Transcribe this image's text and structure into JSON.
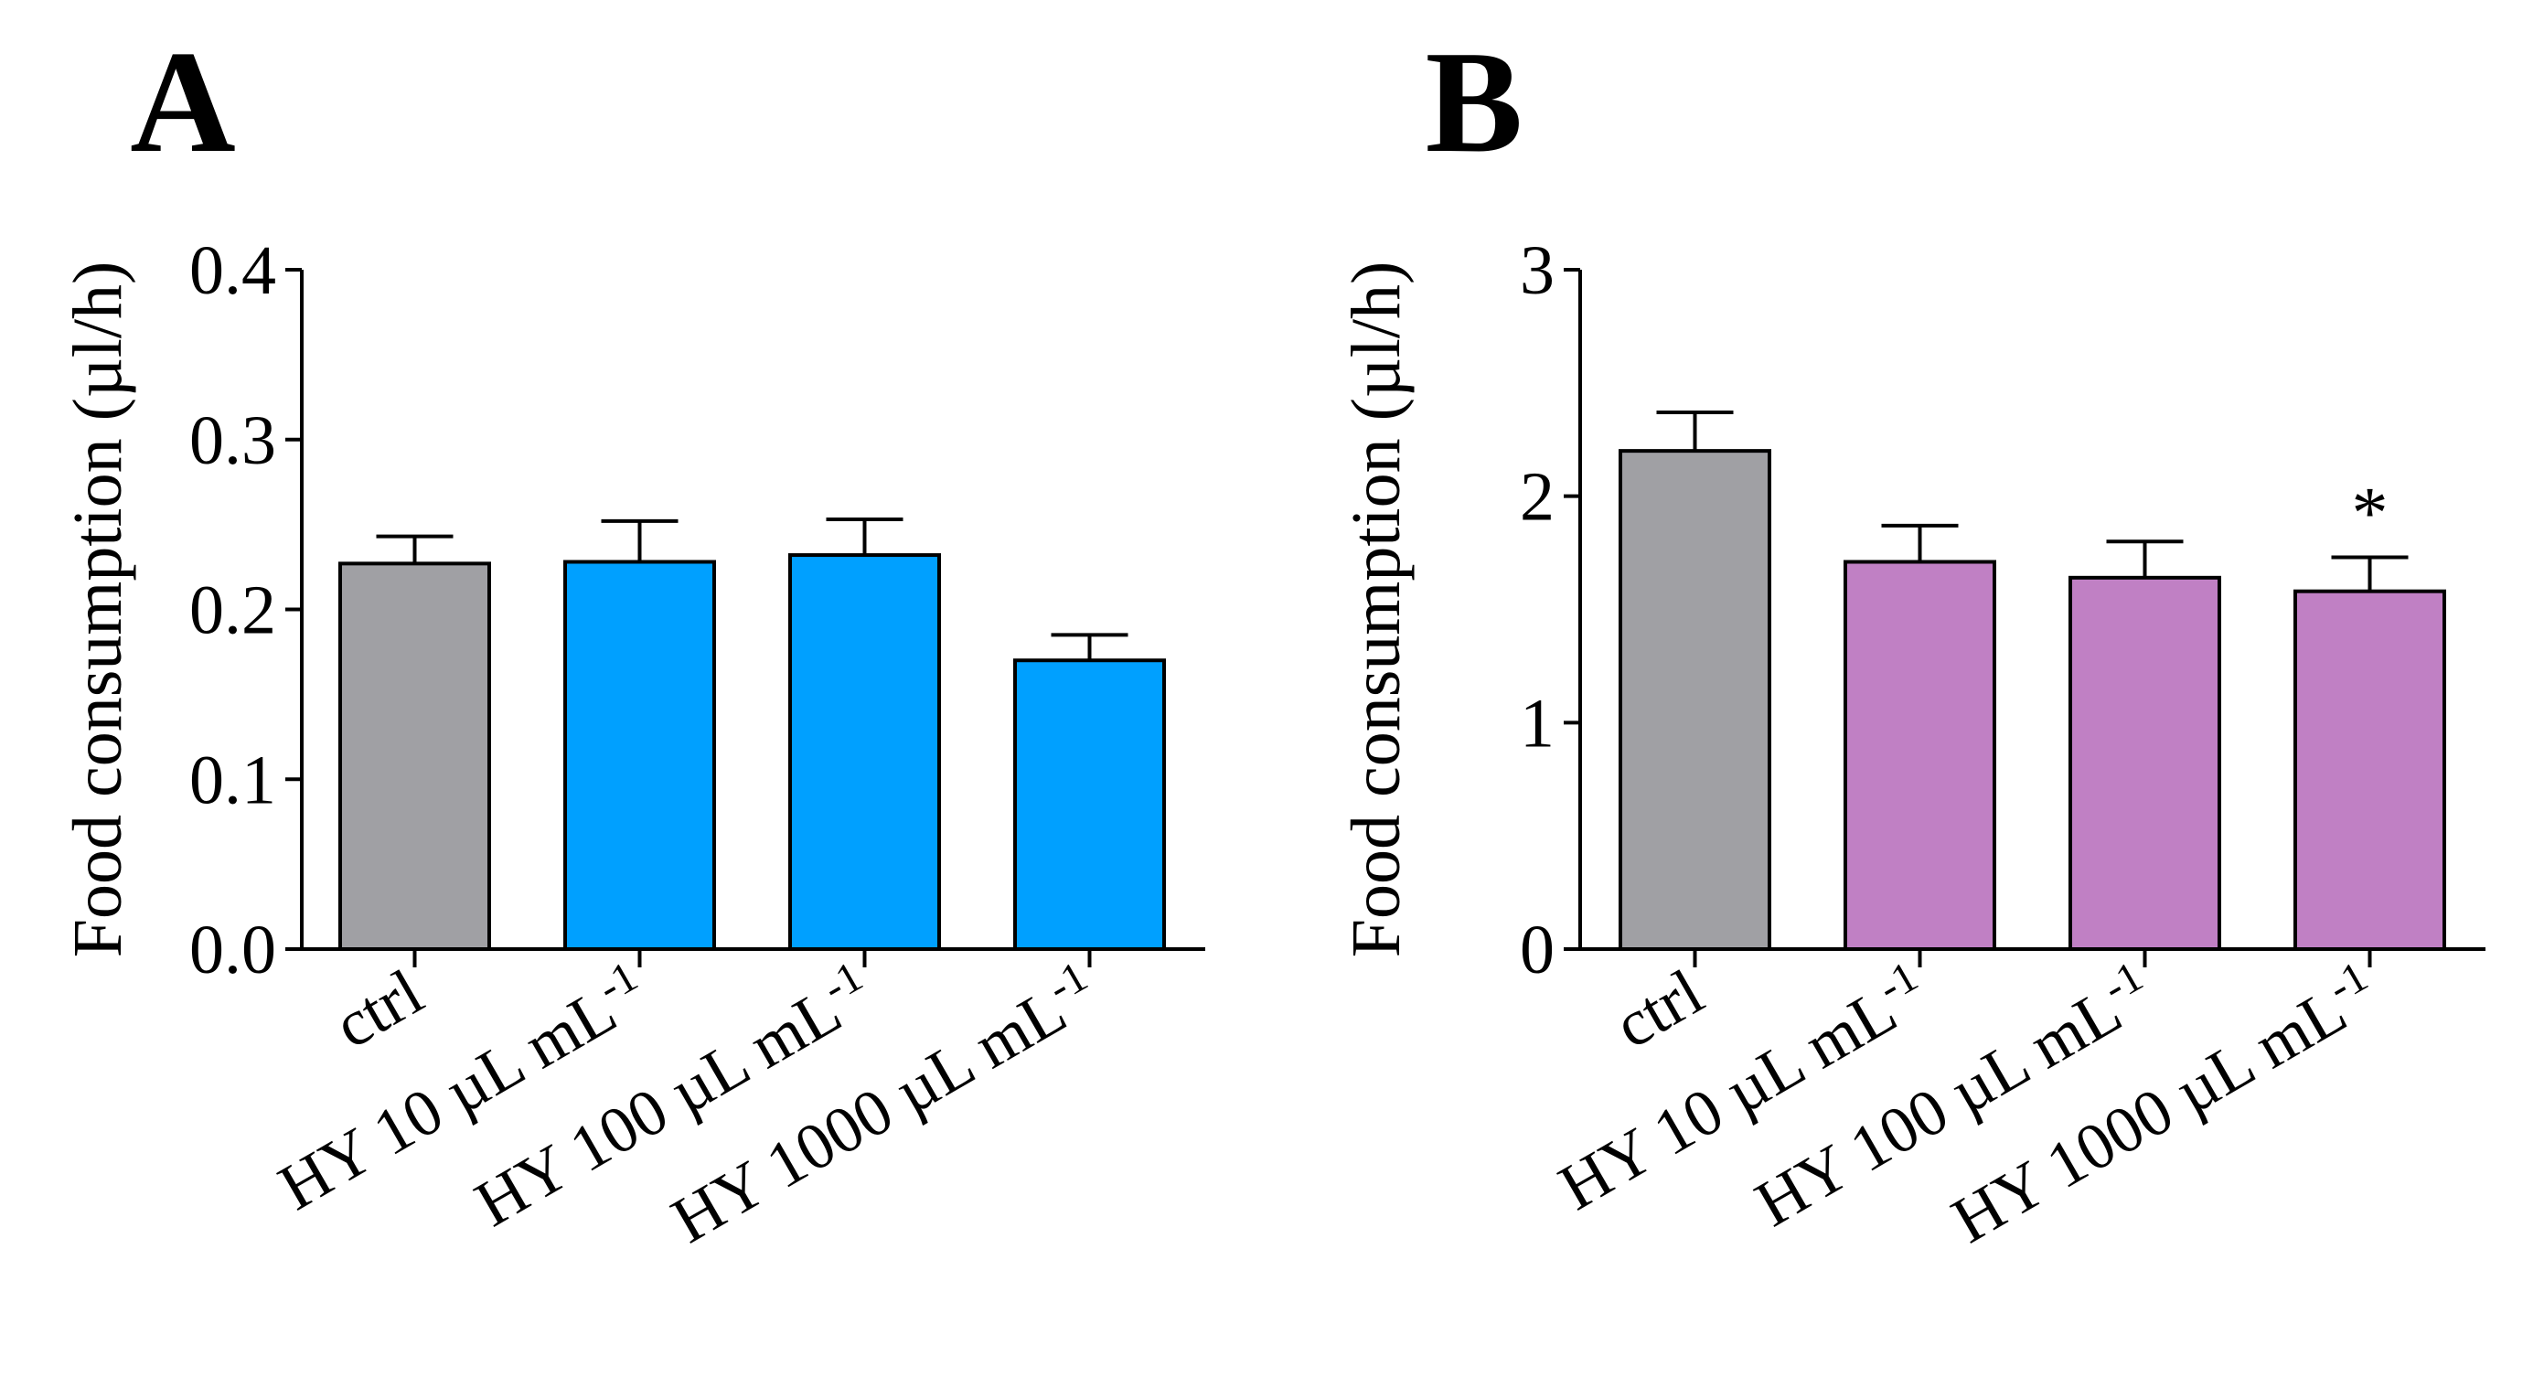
{
  "colors": {
    "ctrl": "#a0a0a4",
    "panel_a_treatment": "#00a0ff",
    "panel_b_treatment": "#c080c4"
  },
  "chart_data": [
    {
      "type": "bar",
      "panel": "A",
      "ylabel": "Food consumption (µl/h)",
      "ylim": [
        0,
        0.4
      ],
      "yticks": [
        0.0,
        0.1,
        0.2,
        0.3,
        0.4
      ],
      "ytick_labels": [
        "0.0",
        "0.1",
        "0.2",
        "0.3",
        "0.4"
      ],
      "categories": [
        {
          "main": "ctrl",
          "sup": ""
        },
        {
          "main": "HY 10 µL mL",
          "sup": "-1"
        },
        {
          "main": "HY 100 µL mL",
          "sup": "-1"
        },
        {
          "main": "HY 1000 µL mL",
          "sup": "-1"
        }
      ],
      "values": [
        0.227,
        0.228,
        0.232,
        0.17
      ],
      "errors": [
        0.016,
        0.024,
        0.021,
        0.015
      ],
      "annotations": [
        "",
        "",
        "",
        ""
      ]
    },
    {
      "type": "bar",
      "panel": "B",
      "ylabel": "Food consumption (µl/h)",
      "ylim": [
        0,
        3
      ],
      "yticks": [
        0,
        1,
        2,
        3
      ],
      "ytick_labels": [
        "0",
        "1",
        "2",
        "3"
      ],
      "categories": [
        {
          "main": "ctrl",
          "sup": ""
        },
        {
          "main": "HY 10 µL mL",
          "sup": "-1"
        },
        {
          "main": "HY 100 µL mL",
          "sup": "-1"
        },
        {
          "main": "HY 1000 µL mL",
          "sup": "-1"
        }
      ],
      "values": [
        2.2,
        1.71,
        1.64,
        1.58
      ],
      "errors": [
        0.17,
        0.16,
        0.16,
        0.15
      ],
      "annotations": [
        "",
        "",
        "",
        "*"
      ]
    }
  ]
}
